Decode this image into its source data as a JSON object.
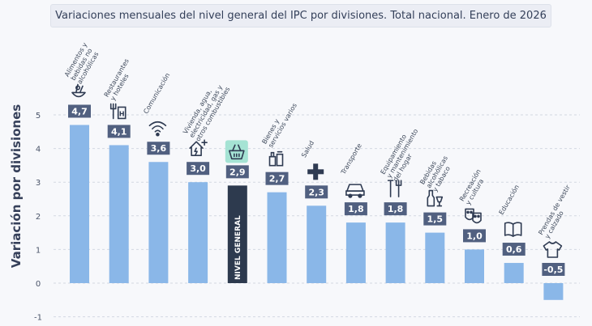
{
  "title": "Variaciones mensuales del nivel general del IPC por divisiones. Total nacional. Enero de 2026",
  "colors": {
    "bar": "#8ab7e8",
    "highlight": "#2d3a4e",
    "label_bg": "#516080",
    "highlight_icon_bg": "#a5e3d4",
    "text": "#3f4a5c"
  },
  "chart_data": {
    "type": "bar",
    "ylabel": "Variación por divisiones",
    "ylim": [
      -1,
      5.5
    ],
    "yticks": [
      "-1",
      "0",
      "1",
      "2",
      "3",
      "4",
      "5"
    ],
    "grid": true,
    "categories": [
      {
        "name": "Alimentos y bebidas no alcohólicas",
        "lines": [
          "Alimentos y",
          "bebidas no",
          "alcohólicas"
        ],
        "value": 4.7,
        "label": "4,7",
        "icon": "food-basket-icon"
      },
      {
        "name": "Restaurantes y hoteles",
        "lines": [
          "Restaurantes",
          "y hoteles"
        ],
        "value": 4.1,
        "label": "4,1",
        "icon": "restaurant-hotel-icon"
      },
      {
        "name": "Comunicación",
        "lines": [
          "Comunicación"
        ],
        "value": 3.6,
        "label": "3,6",
        "icon": "wifi-icon"
      },
      {
        "name": "Vivienda, agua, electricidad, gas y otros combustibles",
        "lines": [
          "Vivienda, agua,",
          "electricidad, gas y",
          "otros combustibles"
        ],
        "value": 3.0,
        "label": "3,0",
        "icon": "house-energy-icon"
      },
      {
        "name": "NIVEL GENERAL",
        "lines": [],
        "value": 2.9,
        "label": "2,9",
        "icon": "shopping-basket-icon",
        "highlight": true,
        "bar_text": "NIVEL GENERAL"
      },
      {
        "name": "Bienes y servicios varios",
        "lines": [
          "Bienes y",
          "servicios varios"
        ],
        "value": 2.7,
        "label": "2,7",
        "icon": "cosmetics-icon"
      },
      {
        "name": "Salud",
        "lines": [
          "Salud"
        ],
        "value": 2.3,
        "label": "2,3",
        "icon": "health-cross-icon"
      },
      {
        "name": "Transporte",
        "lines": [
          "Transporte"
        ],
        "value": 1.8,
        "label": "1,8",
        "icon": "car-icon"
      },
      {
        "name": "Equipamiento y mantenimiento del hogar",
        "lines": [
          "Equipamiento",
          "y mantenimiento",
          "del hogar"
        ],
        "value": 1.8,
        "label": "1,8",
        "icon": "tools-icon"
      },
      {
        "name": "Bebidas alcohólicas y tabaco",
        "lines": [
          "Bebidas",
          "alcohólicas",
          "y tabaco"
        ],
        "value": 1.5,
        "label": "1,5",
        "icon": "bottle-glass-icon"
      },
      {
        "name": "Recreación y cultura",
        "lines": [
          "Recreación",
          "y cultura"
        ],
        "value": 1.0,
        "label": "1,0",
        "icon": "theater-masks-icon"
      },
      {
        "name": "Educación",
        "lines": [
          "Educación"
        ],
        "value": 0.6,
        "label": "0,6",
        "icon": "book-icon"
      },
      {
        "name": "Prendas de vestir y calzado",
        "lines": [
          "Prendas de vestir",
          "y calzado"
        ],
        "value": -0.5,
        "label": "-0,5",
        "icon": "tshirt-icon"
      }
    ]
  }
}
